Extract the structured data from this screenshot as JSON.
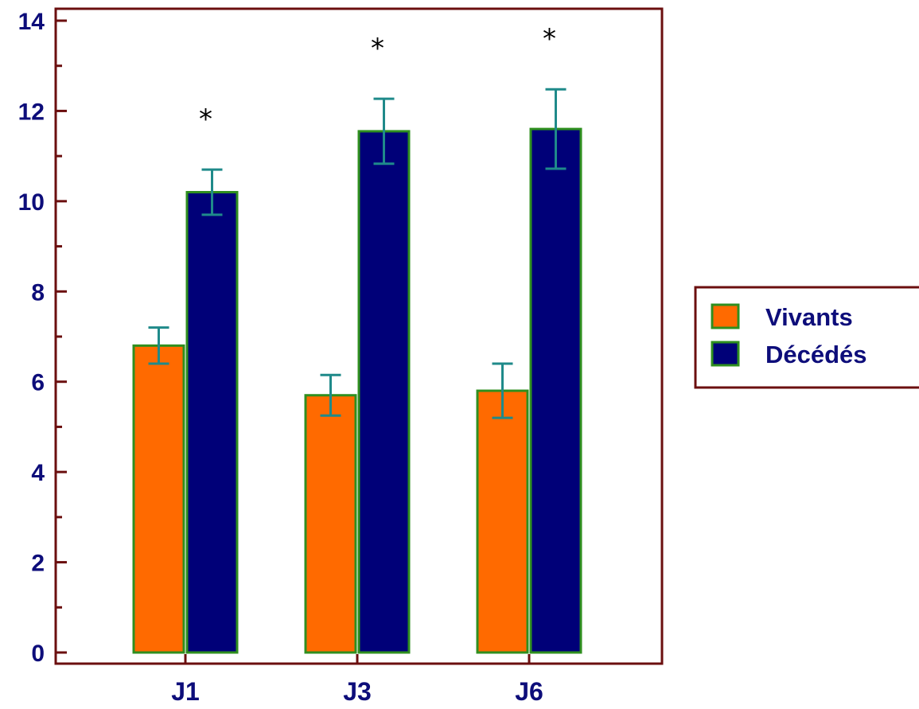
{
  "colors": {
    "frame": "#6b0f0f",
    "axis_text": "#0d0d7a",
    "bar_border": "#2f8f1f",
    "error_bar": "#1f8a8a",
    "background": "#ffffff"
  },
  "chart_data": {
    "type": "bar",
    "categories": [
      "J1",
      "J3",
      "J6"
    ],
    "series": [
      {
        "name": "Vivants",
        "color": "#ff6a00",
        "values": [
          6.8,
          5.7,
          5.8
        ],
        "error": [
          0.4,
          0.45,
          0.6
        ]
      },
      {
        "name": "Décédés",
        "color": "#000078",
        "values": [
          10.2,
          11.55,
          11.6
        ],
        "error": [
          0.5,
          0.72,
          0.88
        ]
      }
    ],
    "annotations": [
      "*",
      "*",
      "*"
    ],
    "ylim": [
      0,
      14
    ],
    "yticks": [
      "0",
      "2",
      "4",
      "6",
      "8",
      "10",
      "12",
      "14"
    ],
    "y_minor_step": 1,
    "legend_position": "right",
    "grid": false
  }
}
